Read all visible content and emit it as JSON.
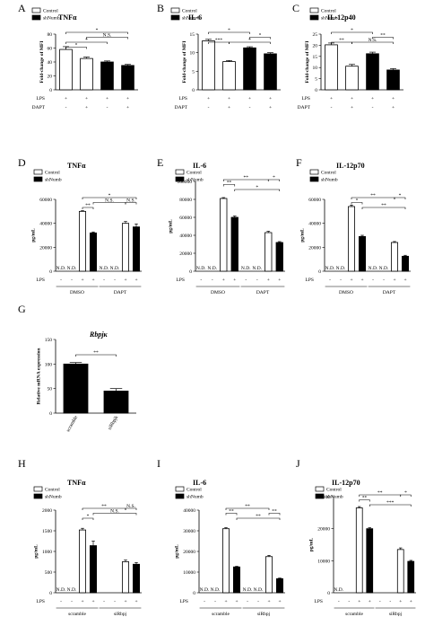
{
  "chart_data": [
    {
      "id": "A",
      "type": "bar",
      "title": "TNFα",
      "ylabel": "Fold-change of MFI",
      "ylim": [
        0,
        80
      ],
      "yticks": [
        0,
        20,
        40,
        60,
        80
      ],
      "legend": [
        "Control",
        "shNumb"
      ],
      "values": [
        58,
        45,
        40,
        35
      ],
      "errors": [
        4,
        2,
        1.5,
        1.5
      ],
      "fills": [
        "w",
        "w",
        "k",
        "k"
      ],
      "rows": [
        {
          "label": "LPS",
          "signs": [
            "+",
            "+",
            "+",
            "+"
          ]
        },
        {
          "label": "DAPT",
          "signs": [
            "-",
            "+",
            "-",
            "+"
          ]
        }
      ],
      "sig": [
        {
          "a": 0,
          "b": 3,
          "t": "*",
          "lvl": 3
        },
        {
          "a": 1,
          "b": 3,
          "t": "N.S.",
          "lvl": 2
        },
        {
          "a": 0,
          "b": 2,
          "t": "*",
          "lvl": 1
        },
        {
          "a": 0,
          "b": 1,
          "t": "*",
          "lvl": 0
        }
      ],
      "groups": []
    },
    {
      "id": "B",
      "type": "bar",
      "title": "IL-6",
      "ylabel": "Fold-change of MFI",
      "ylim": [
        0,
        15
      ],
      "yticks": [
        0,
        5,
        10,
        15
      ],
      "legend": [
        "Control",
        "shNum b"
      ],
      "values": [
        13.2,
        7.6,
        11.3,
        9.7
      ],
      "errors": [
        0.4,
        0.3,
        0.3,
        0.3
      ],
      "fills": [
        "w",
        "w",
        "k",
        "k"
      ],
      "rows": [
        {
          "label": "LPS",
          "signs": [
            "+",
            "+",
            "+",
            "+"
          ]
        },
        {
          "label": "DAPT",
          "signs": [
            "-",
            "+",
            "-",
            "+"
          ]
        }
      ],
      "sig": [
        {
          "a": 0,
          "b": 2,
          "t": "*",
          "lvl": 3
        },
        {
          "a": 2,
          "b": 3,
          "t": "*",
          "lvl": 2
        },
        {
          "a": 0,
          "b": 1,
          "t": "***",
          "lvl": 1
        },
        {
          "a": 1,
          "b": 3,
          "t": "*",
          "lvl": 1
        }
      ],
      "groups": []
    },
    {
      "id": "C",
      "type": "bar",
      "title": "IL-12p40",
      "ylabel": "Fold-change of MFI",
      "ylim": [
        0,
        25
      ],
      "yticks": [
        0,
        5,
        10,
        15,
        20,
        25
      ],
      "legend": [
        "Control",
        "shNumb"
      ],
      "values": [
        20.2,
        10.6,
        16.2,
        8.9
      ],
      "errors": [
        0.8,
        0.8,
        0.7,
        0.6
      ],
      "fills": [
        "w",
        "w",
        "k",
        "k"
      ],
      "rows": [
        {
          "label": "LPS",
          "signs": [
            "+",
            "+",
            "+",
            "+"
          ]
        },
        {
          "label": "DAPT",
          "signs": [
            "-",
            "+",
            "-",
            "+"
          ]
        }
      ],
      "sig": [
        {
          "a": 0,
          "b": 2,
          "t": "*",
          "lvl": 3
        },
        {
          "a": 2,
          "b": 3,
          "t": "**",
          "lvl": 2
        },
        {
          "a": 0,
          "b": 1,
          "t": "**",
          "lvl": 1
        },
        {
          "a": 1,
          "b": 3,
          "t": "N.S.",
          "lvl": 1
        }
      ],
      "groups": []
    },
    {
      "id": "D",
      "type": "bar",
      "title": "TNFα",
      "ylabel": "pg/mL",
      "ylim": [
        0,
        60000
      ],
      "yticks": [
        0,
        20000,
        40000,
        60000
      ],
      "legend": [
        "Control",
        "shNumb"
      ],
      "values": [
        0,
        0,
        50000,
        32000,
        0,
        0,
        40000,
        37000
      ],
      "errors": [
        0,
        0,
        600,
        800,
        0,
        0,
        1500,
        2500
      ],
      "fills": [
        "w",
        "k",
        "w",
        "k",
        "w",
        "k",
        "w",
        "k"
      ],
      "nd": [
        0,
        1,
        4,
        5
      ],
      "rows": [
        {
          "label": "LPS",
          "signs": [
            "-",
            "-",
            "+",
            "+",
            "-",
            "-",
            "+",
            "+"
          ]
        }
      ],
      "sig": [
        {
          "a": 2,
          "b": 7,
          "t": "*",
          "lvl": 3
        },
        {
          "a": 3,
          "b": 6,
          "t": "N.S.",
          "lvl": 2
        },
        {
          "a": 6,
          "b": 7,
          "t": "N.S.",
          "lvl": 2
        },
        {
          "a": 2,
          "b": 3,
          "t": "**",
          "lvl": 1
        }
      ],
      "groups": [
        {
          "label": "DMSO",
          "a": 0,
          "b": 3
        },
        {
          "label": "DAPT",
          "a": 4,
          "b": 7
        }
      ]
    },
    {
      "id": "E",
      "type": "bar",
      "title": "IL-6",
      "ylabel": "pg/mL",
      "ylim": [
        0,
        100000
      ],
      "yticks": [
        0,
        20000,
        40000,
        60000,
        80000,
        100000
      ],
      "legend": [
        "Control",
        "shNumb"
      ],
      "values": [
        0,
        0,
        81000,
        60000,
        0,
        0,
        43000,
        32000
      ],
      "errors": [
        0,
        0,
        1000,
        1500,
        0,
        0,
        1500,
        1000
      ],
      "fills": [
        "w",
        "k",
        "w",
        "k",
        "w",
        "k",
        "w",
        "k"
      ],
      "nd": [
        0,
        1,
        4,
        5
      ],
      "rows": [
        {
          "label": "LPS",
          "signs": [
            "-",
            "-",
            "+",
            "+",
            "-",
            "-",
            "+",
            "+"
          ]
        }
      ],
      "sig": [
        {
          "a": 2,
          "b": 6,
          "t": "**",
          "lvl": 3
        },
        {
          "a": 6,
          "b": 7,
          "t": "*",
          "lvl": 3
        },
        {
          "a": 2,
          "b": 3,
          "t": "**",
          "lvl": 2
        },
        {
          "a": 3,
          "b": 7,
          "t": "*",
          "lvl": 1
        }
      ],
      "groups": [
        {
          "label": "DMSO",
          "a": 0,
          "b": 3
        },
        {
          "label": "DAPT",
          "a": 4,
          "b": 7
        }
      ]
    },
    {
      "id": "F",
      "type": "bar",
      "title": "IL-12p70",
      "ylabel": "pg/mL",
      "ylim": [
        0,
        60000
      ],
      "yticks": [
        0,
        20000,
        40000,
        60000
      ],
      "legend": [
        "Control",
        "shNumb"
      ],
      "values": [
        0,
        0,
        54000,
        29000,
        0,
        0,
        24000,
        12500
      ],
      "errors": [
        0,
        0,
        1200,
        1000,
        0,
        0,
        800,
        800
      ],
      "fills": [
        "w",
        "k",
        "w",
        "k",
        "w",
        "k",
        "w",
        "k"
      ],
      "nd": [
        0,
        1,
        4,
        5
      ],
      "rows": [
        {
          "label": "LPS",
          "signs": [
            "-",
            "-",
            "+",
            "+",
            "-",
            "-",
            "+",
            "+"
          ]
        }
      ],
      "sig": [
        {
          "a": 2,
          "b": 6,
          "t": "**",
          "lvl": 3
        },
        {
          "a": 6,
          "b": 7,
          "t": "*",
          "lvl": 3
        },
        {
          "a": 2,
          "b": 3,
          "t": "*",
          "lvl": 2
        },
        {
          "a": 3,
          "b": 7,
          "t": "**",
          "lvl": 1
        }
      ],
      "groups": [
        {
          "label": "DMSO",
          "a": 0,
          "b": 3
        },
        {
          "label": "DAPT",
          "a": 4,
          "b": 7
        }
      ]
    },
    {
      "id": "G",
      "type": "bar",
      "title": "Rbpjκ",
      "ylabel": "Relative mRNA expression",
      "ylim": [
        0,
        150
      ],
      "yticks": [
        0,
        50,
        100,
        150
      ],
      "legend": [],
      "values": [
        100,
        45
      ],
      "errors": [
        3,
        5
      ],
      "fills": [
        "k",
        "k"
      ],
      "categories": [
        "scramble",
        "siRbpjk"
      ],
      "rows": [],
      "sig": [
        {
          "a": 0,
          "b": 1,
          "t": "**",
          "lvl": 1
        }
      ],
      "groups": []
    },
    {
      "id": "H",
      "type": "bar",
      "title": "TNFα",
      "ylabel": "pg/mL",
      "ylim": [
        0,
        2000
      ],
      "yticks": [
        0,
        500,
        1000,
        1500,
        2000
      ],
      "legend": [
        "Control",
        "shNumb"
      ],
      "values": [
        0,
        0,
        1520,
        1140,
        0,
        0,
        750,
        690
      ],
      "errors": [
        0,
        0,
        40,
        110,
        0,
        0,
        40,
        40
      ],
      "fills": [
        "w",
        "k",
        "w",
        "k",
        "w",
        "k",
        "w",
        "k"
      ],
      "nd": [
        0,
        1
      ],
      "rows": [
        {
          "label": "LPS",
          "signs": [
            "-",
            "-",
            "+",
            "+",
            "-",
            "-",
            "+",
            "+"
          ]
        }
      ],
      "sig": [
        {
          "a": 2,
          "b": 6,
          "t": "**",
          "lvl": 3
        },
        {
          "a": 6,
          "b": 7,
          "t": "N.S.",
          "lvl": 3
        },
        {
          "a": 3,
          "b": 7,
          "t": "N.S.",
          "lvl": 2
        },
        {
          "a": 2,
          "b": 3,
          "t": "*",
          "lvl": 1
        }
      ],
      "groups": [
        {
          "label": "scramble",
          "a": 0,
          "b": 3
        },
        {
          "label": "siRbpj",
          "a": 4,
          "b": 7
        }
      ]
    },
    {
      "id": "I",
      "type": "bar",
      "title": "IL-6",
      "ylabel": "pg/mL",
      "ylim": [
        0,
        40000
      ],
      "yticks": [
        0,
        10000,
        20000,
        30000,
        40000
      ],
      "legend": [
        "Control",
        "shNumb"
      ],
      "values": [
        0,
        0,
        31000,
        12500,
        0,
        0,
        17500,
        6800
      ],
      "errors": [
        0,
        0,
        500,
        300,
        0,
        0,
        600,
        300
      ],
      "fills": [
        "w",
        "k",
        "w",
        "k",
        "w",
        "k",
        "w",
        "k"
      ],
      "nd": [
        0,
        1,
        4,
        5
      ],
      "rows": [
        {
          "label": "LPS",
          "signs": [
            "-",
            "-",
            "+",
            "+",
            "-",
            "-",
            "+",
            "+"
          ]
        }
      ],
      "sig": [
        {
          "a": 2,
          "b": 6,
          "t": "**",
          "lvl": 3
        },
        {
          "a": 2,
          "b": 3,
          "t": "**",
          "lvl": 2
        },
        {
          "a": 6,
          "b": 7,
          "t": "**",
          "lvl": 2
        },
        {
          "a": 3,
          "b": 7,
          "t": "**",
          "lvl": 1
        }
      ],
      "groups": [
        {
          "label": "scramble",
          "a": 0,
          "b": 3
        },
        {
          "label": "siRbpj",
          "a": 4,
          "b": 7
        }
      ]
    },
    {
      "id": "J",
      "type": "bar",
      "title": "IL-12p70",
      "ylabel": "pg/mL",
      "ylim": [
        0,
        30000
      ],
      "yticks": [
        0,
        10000,
        20000,
        30000
      ],
      "legend": [
        "Control",
        "shNumb"
      ],
      "values": [
        0,
        0,
        26500,
        20000,
        0,
        0,
        13500,
        9800
      ],
      "errors": [
        0,
        0,
        400,
        300,
        0,
        0,
        500,
        300
      ],
      "fills": [
        "w",
        "k",
        "w",
        "k",
        "w",
        "k",
        "w",
        "k"
      ],
      "nd": [
        0
      ],
      "rows": [
        {
          "label": "LPS",
          "signs": [
            "-",
            "-",
            "+",
            "+",
            "-",
            "-",
            "+",
            "+"
          ]
        }
      ],
      "sig": [
        {
          "a": 2,
          "b": 6,
          "t": "**",
          "lvl": 3
        },
        {
          "a": 6,
          "b": 7,
          "t": "*",
          "lvl": 3
        },
        {
          "a": 2,
          "b": 3,
          "t": "**",
          "lvl": 2
        },
        {
          "a": 3,
          "b": 7,
          "t": "***",
          "lvl": 1
        }
      ],
      "groups": [
        {
          "label": "scramble",
          "a": 0,
          "b": 3
        },
        {
          "label": "siRbpj",
          "a": 4,
          "b": 7
        }
      ]
    }
  ]
}
